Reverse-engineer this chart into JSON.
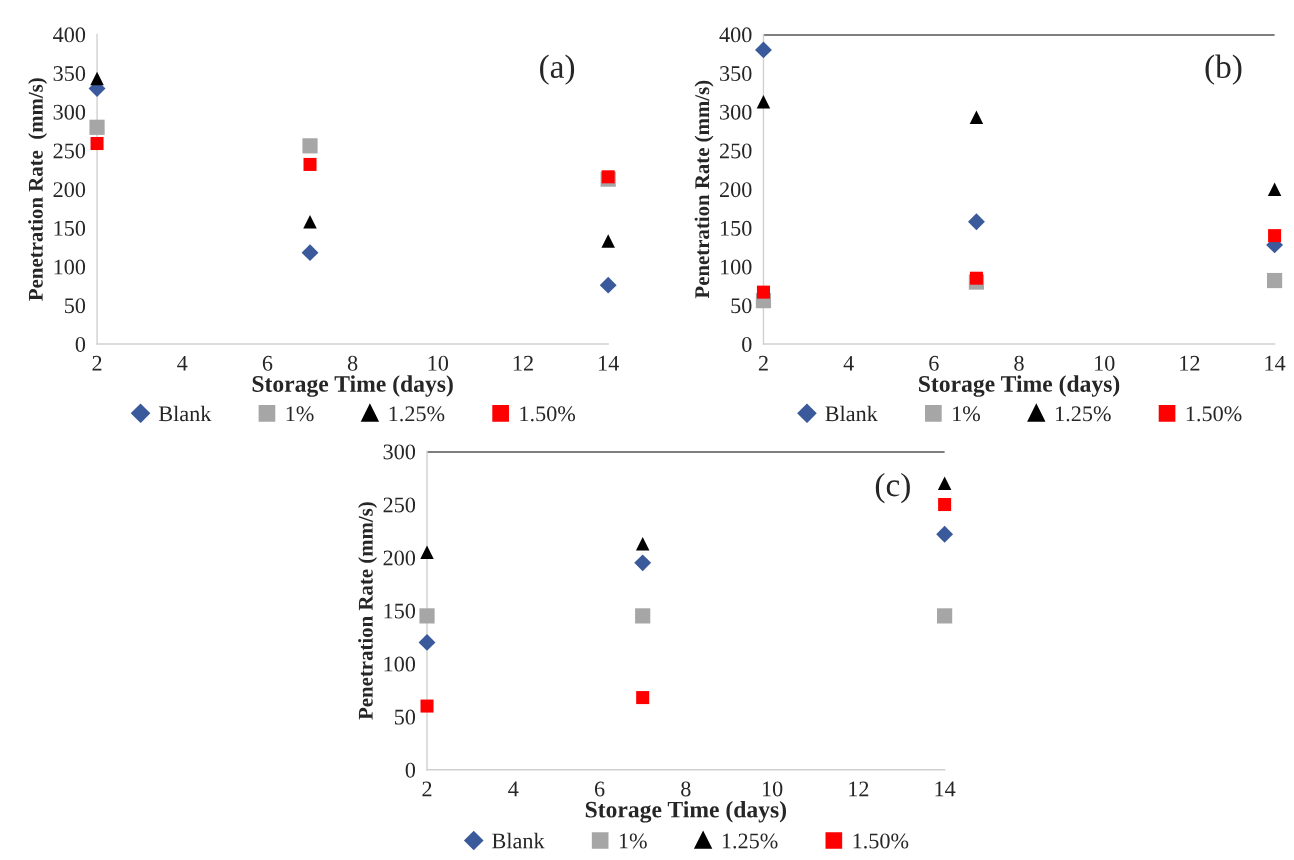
{
  "chart_data": [
    {
      "type": "scatter",
      "x": [
        2,
        7,
        14
      ],
      "xlabel": "Storage Time (days)",
      "ylabel": "Penetration Rate  (mm/s)",
      "xlim": [
        2,
        14
      ],
      "xticks": [
        2,
        4,
        6,
        8,
        10,
        12,
        14
      ],
      "ylim": [
        0,
        400
      ],
      "yticks": [
        0,
        50,
        100,
        150,
        200,
        250,
        300,
        350,
        400
      ],
      "legend": "bottom",
      "grid": false,
      "annotations": [
        "(a)"
      ],
      "series": [
        {
          "name": "Blank",
          "color": "#3a5a9c",
          "marker": "diamond",
          "values": [
            330,
            118,
            76
          ]
        },
        {
          "name": "1%",
          "color": "#a6a6a6",
          "marker": "square",
          "values": [
            280,
            256,
            213
          ]
        },
        {
          "name": "1.25%",
          "color": "#000000",
          "marker": "triangle",
          "values": [
            343,
            158,
            133
          ]
        },
        {
          "name": "1.50%",
          "color": "#ff0000",
          "marker": "square",
          "values": [
            259,
            232,
            216
          ]
        }
      ]
    },
    {
      "type": "scatter",
      "x": [
        2,
        7,
        14
      ],
      "xlabel": "Storage Time (days)",
      "ylabel": "Penetration Rate (mm/s)",
      "xlim": [
        2,
        14
      ],
      "xticks": [
        2,
        4,
        6,
        8,
        10,
        12,
        14
      ],
      "ylim": [
        0,
        400
      ],
      "yticks": [
        0,
        50,
        100,
        150,
        200,
        250,
        300,
        350,
        400
      ],
      "legend": "bottom",
      "grid": false,
      "annotations": [
        "(b)"
      ],
      "ref_lines": [
        {
          "axis": "y",
          "value": 400,
          "color": "#000000"
        }
      ],
      "series": [
        {
          "name": "Blank",
          "color": "#3a5a9c",
          "marker": "diamond",
          "values": [
            380,
            158,
            128
          ]
        },
        {
          "name": "1%",
          "color": "#a6a6a6",
          "marker": "square",
          "values": [
            56,
            80,
            82
          ]
        },
        {
          "name": "1.25%",
          "color": "#000000",
          "marker": "triangle",
          "values": [
            313,
            293,
            200
          ]
        },
        {
          "name": "1.50%",
          "color": "#ff0000",
          "marker": "square",
          "values": [
            67,
            85,
            140
          ]
        }
      ]
    },
    {
      "type": "scatter",
      "x": [
        2,
        7,
        14
      ],
      "xlabel": "Storage Time (days)",
      "ylabel": "Penetration Rate (mm/s)",
      "xlim": [
        2,
        14
      ],
      "xticks": [
        2,
        4,
        6,
        8,
        10,
        12,
        14
      ],
      "ylim": [
        0,
        300
      ],
      "yticks": [
        0,
        50,
        100,
        150,
        200,
        250,
        300
      ],
      "legend": "bottom",
      "grid": false,
      "annotations": [
        "(c)"
      ],
      "ref_lines": [
        {
          "axis": "y",
          "value": 300,
          "color": "#000000"
        }
      ],
      "series": [
        {
          "name": "Blank",
          "color": "#3a5a9c",
          "marker": "diamond",
          "values": [
            120,
            195,
            222
          ]
        },
        {
          "name": "1%",
          "color": "#a6a6a6",
          "marker": "square",
          "values": [
            145,
            145,
            145
          ]
        },
        {
          "name": "1.25%",
          "color": "#000000",
          "marker": "triangle",
          "values": [
            205,
            213,
            270
          ]
        },
        {
          "name": "1.50%",
          "color": "#ff0000",
          "marker": "square",
          "values": [
            60,
            68,
            250
          ]
        }
      ]
    }
  ]
}
